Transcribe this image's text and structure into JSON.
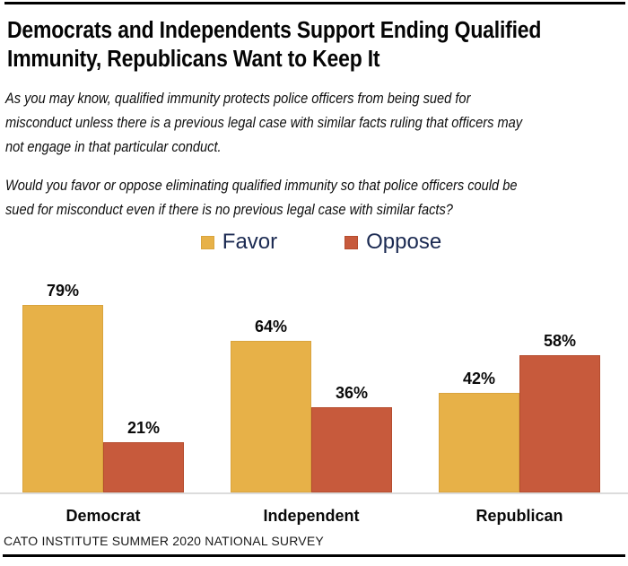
{
  "page": {
    "title": "Democrats and Independents Support Ending Qualified\nImmunity, Republicans Want to Keep It",
    "intro_para1": "As you may know, qualified immunity protects police officers from being sued for\nmisconduct unless there is a previous legal case with similar facts ruling that officers may\nnot engage in that particular conduct.",
    "intro_para2": "Would you favor or oppose eliminating qualified immunity so that police officers could be\nsued for misconduct even if there is no previous legal case with similar facts?",
    "source": "CATO INSTITUTE SUMMER 2020 NATIONAL SURVEY"
  },
  "colors": {
    "favor_fill": "#E7B148",
    "favor_border": "#D9A43E",
    "oppose_fill": "#C75A3C",
    "oppose_border": "#B54C2E",
    "legend_text": "#1B2A52",
    "axis_line": "#DCDCDC",
    "rule": "#000000"
  },
  "chart_data": {
    "type": "bar",
    "title": "Democrats and Independents Support Ending Qualified Immunity, Republicans Want to Keep It",
    "categories": [
      "Democrat",
      "Independent",
      "Republican"
    ],
    "series": [
      {
        "name": "Favor",
        "values": [
          79,
          64,
          42
        ],
        "color": "#E7B148",
        "border_color": "#D9A43E"
      },
      {
        "name": "Oppose",
        "values": [
          21,
          36,
          58
        ],
        "color": "#C75A3C",
        "border_color": "#B54C2E"
      }
    ],
    "value_suffix": "%",
    "xlabel": "",
    "ylabel": "",
    "ylim": [
      0,
      100
    ],
    "grid": false,
    "legend_position": "top-center",
    "annotation_source": "CATO INSTITUTE SUMMER 2020 NATIONAL SURVEY"
  }
}
